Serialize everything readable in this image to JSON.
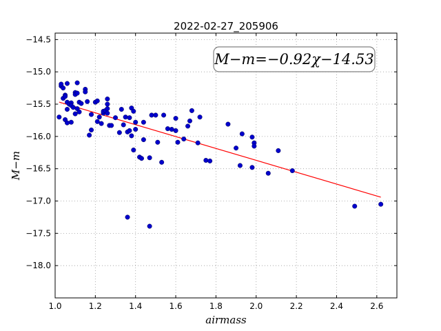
{
  "chart_data": {
    "type": "scatter",
    "title": "2022-02-27_205906",
    "xlabel": "airmass",
    "ylabel": "M−m",
    "xlim": [
      1.0,
      2.7
    ],
    "ylim": [
      -18.5,
      -14.4
    ],
    "y_inverted": true,
    "grid": true,
    "xticks": [
      1.0,
      1.2,
      1.4,
      1.6,
      1.8,
      2.0,
      2.2,
      2.4,
      2.6
    ],
    "xtick_labels": [
      "1.0",
      "1.2",
      "1.4",
      "1.6",
      "1.8",
      "2.0",
      "2.2",
      "2.4",
      "2.6"
    ],
    "yticks": [
      -14.5,
      -15.0,
      -15.5,
      -16.0,
      -16.5,
      -17.0,
      -17.5,
      -18.0
    ],
    "ytick_labels": [
      "−14.5",
      "−15.0",
      "−15.5",
      "−16.0",
      "−16.5",
      "−17.0",
      "−17.5",
      "−18.0"
    ],
    "annotation": "M−m=−0.92χ−14.53",
    "colors": {
      "points": "#0000cc",
      "fit": "#ff0000"
    },
    "fit": {
      "slope": -0.92,
      "intercept": -14.53,
      "x_range": [
        1.02,
        2.62
      ]
    },
    "points": [
      [
        1.02,
        -15.7
      ],
      [
        1.03,
        -15.22
      ],
      [
        1.03,
        -15.19
      ],
      [
        1.04,
        -15.25
      ],
      [
        1.04,
        -15.41
      ],
      [
        1.05,
        -15.36
      ],
      [
        1.05,
        -15.38
      ],
      [
        1.05,
        -15.74
      ],
      [
        1.06,
        -15.47
      ],
      [
        1.06,
        -15.58
      ],
      [
        1.06,
        -15.79
      ],
      [
        1.06,
        -15.18
      ],
      [
        1.07,
        -15.5
      ],
      [
        1.08,
        -15.48
      ],
      [
        1.08,
        -15.52
      ],
      [
        1.08,
        -15.78
      ],
      [
        1.09,
        -15.55
      ],
      [
        1.1,
        -15.32
      ],
      [
        1.1,
        -15.35
      ],
      [
        1.1,
        -15.65
      ],
      [
        1.11,
        -15.17
      ],
      [
        1.11,
        -15.57
      ],
      [
        1.11,
        -15.33
      ],
      [
        1.12,
        -15.47
      ],
      [
        1.12,
        -15.62
      ],
      [
        1.13,
        -15.49
      ],
      [
        1.15,
        -15.27
      ],
      [
        1.15,
        -15.31
      ],
      [
        1.16,
        -15.46
      ],
      [
        1.17,
        -15.98
      ],
      [
        1.18,
        -15.9
      ],
      [
        1.18,
        -15.66
      ],
      [
        1.2,
        -15.47
      ],
      [
        1.21,
        -15.45
      ],
      [
        1.21,
        -15.77
      ],
      [
        1.22,
        -15.7
      ],
      [
        1.23,
        -15.8
      ],
      [
        1.24,
        -15.64
      ],
      [
        1.24,
        -15.61
      ],
      [
        1.25,
        -15.6
      ],
      [
        1.26,
        -15.42
      ],
      [
        1.26,
        -15.5
      ],
      [
        1.26,
        -15.57
      ],
      [
        1.26,
        -15.64
      ],
      [
        1.27,
        -15.83
      ],
      [
        1.28,
        -15.83
      ],
      [
        1.3,
        -15.71
      ],
      [
        1.32,
        -15.94
      ],
      [
        1.33,
        -15.58
      ],
      [
        1.34,
        -15.82
      ],
      [
        1.35,
        -15.7
      ],
      [
        1.36,
        -15.93
      ],
      [
        1.36,
        -17.25
      ],
      [
        1.37,
        -15.91
      ],
      [
        1.37,
        -15.71
      ],
      [
        1.38,
        -15.99
      ],
      [
        1.38,
        -15.56
      ],
      [
        1.39,
        -15.61
      ],
      [
        1.39,
        -16.21
      ],
      [
        1.4,
        -15.78
      ],
      [
        1.4,
        -15.89
      ],
      [
        1.42,
        -16.32
      ],
      [
        1.43,
        -16.34
      ],
      [
        1.44,
        -16.05
      ],
      [
        1.44,
        -15.78
      ],
      [
        1.47,
        -16.33
      ],
      [
        1.47,
        -17.39
      ],
      [
        1.48,
        -15.67
      ],
      [
        1.5,
        -15.67
      ],
      [
        1.51,
        -16.09
      ],
      [
        1.53,
        -16.4
      ],
      [
        1.54,
        -15.67
      ],
      [
        1.56,
        -15.88
      ],
      [
        1.58,
        -15.89
      ],
      [
        1.6,
        -15.72
      ],
      [
        1.6,
        -15.91
      ],
      [
        1.61,
        -16.09
      ],
      [
        1.64,
        -16.04
      ],
      [
        1.66,
        -15.84
      ],
      [
        1.67,
        -15.76
      ],
      [
        1.68,
        -15.6
      ],
      [
        1.71,
        -16.1
      ],
      [
        1.72,
        -15.7
      ],
      [
        1.75,
        -16.37
      ],
      [
        1.77,
        -16.38
      ],
      [
        1.86,
        -15.81
      ],
      [
        1.9,
        -16.18
      ],
      [
        1.92,
        -16.45
      ],
      [
        1.93,
        -15.96
      ],
      [
        1.98,
        -16.48
      ],
      [
        1.98,
        -16.01
      ],
      [
        1.99,
        -16.1
      ],
      [
        1.99,
        -16.15
      ],
      [
        2.06,
        -16.57
      ],
      [
        2.11,
        -16.22
      ],
      [
        2.18,
        -16.53
      ],
      [
        2.49,
        -17.08
      ],
      [
        2.62,
        -17.05
      ]
    ]
  }
}
